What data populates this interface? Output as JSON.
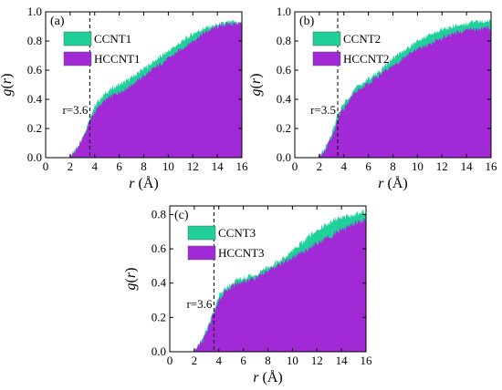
{
  "chart_data": [
    {
      "type": "area",
      "panel_label": "(a)",
      "xlabel": "r (Å)",
      "ylabel": "g(r)",
      "xlim": [
        0,
        16
      ],
      "ylim": [
        0,
        1.0
      ],
      "xticks": [
        0,
        2,
        4,
        6,
        8,
        10,
        12,
        14,
        16
      ],
      "yticks": [
        0.0,
        0.2,
        0.4,
        0.6,
        0.8,
        1.0
      ],
      "legend_position": "top-left",
      "annotation": {
        "text": "r=3.6",
        "x": 3.6
      },
      "series": [
        {
          "name": "CCNT1",
          "color": "#20d09a",
          "x": [
            0,
            1.9,
            2.3,
            2.7,
            3.0,
            3.3,
            3.6,
            4.0,
            4.5,
            5.0,
            5.5,
            6.0,
            6.5,
            7.0,
            7.5,
            8.0,
            8.5,
            9.0,
            9.5,
            10.0,
            10.5,
            11.0,
            11.5,
            12.0,
            12.5,
            13.0,
            13.5,
            14.0,
            14.5,
            15.0,
            15.5,
            16.0
          ],
          "y": [
            0,
            0,
            0.04,
            0.09,
            0.14,
            0.2,
            0.28,
            0.35,
            0.41,
            0.45,
            0.48,
            0.5,
            0.52,
            0.55,
            0.58,
            0.61,
            0.64,
            0.67,
            0.7,
            0.73,
            0.76,
            0.79,
            0.82,
            0.85,
            0.87,
            0.89,
            0.9,
            0.91,
            0.92,
            0.93,
            0.93,
            0.92
          ]
        },
        {
          "name": "HCCNT1",
          "color": "#a22ad6",
          "x": [
            0,
            1.9,
            2.3,
            2.7,
            3.0,
            3.3,
            3.6,
            4.0,
            4.5,
            5.0,
            5.5,
            6.0,
            6.5,
            7.0,
            7.5,
            8.0,
            8.5,
            9.0,
            9.5,
            10.0,
            10.5,
            11.0,
            11.5,
            12.0,
            12.5,
            13.0,
            13.5,
            14.0,
            14.5,
            15.0,
            15.5,
            16.0
          ],
          "y": [
            0,
            0,
            0.03,
            0.08,
            0.13,
            0.18,
            0.25,
            0.31,
            0.37,
            0.4,
            0.43,
            0.45,
            0.47,
            0.5,
            0.53,
            0.56,
            0.59,
            0.62,
            0.65,
            0.68,
            0.71,
            0.74,
            0.77,
            0.8,
            0.83,
            0.86,
            0.88,
            0.9,
            0.91,
            0.92,
            0.92,
            0.92
          ]
        }
      ]
    },
    {
      "type": "area",
      "panel_label": "(b)",
      "xlabel": "r (Å)",
      "ylabel": "g(r)",
      "xlim": [
        0,
        16
      ],
      "ylim": [
        0,
        1.0
      ],
      "xticks": [
        0,
        2,
        4,
        6,
        8,
        10,
        12,
        14,
        16
      ],
      "yticks": [
        0.0,
        0.2,
        0.4,
        0.6,
        0.8,
        1.0
      ],
      "legend_position": "top-left",
      "annotation": {
        "text": "r=3.5",
        "x": 3.5
      },
      "series": [
        {
          "name": "CCNT2",
          "color": "#20d09a",
          "x": [
            0,
            1.9,
            2.3,
            2.7,
            3.0,
            3.3,
            3.5,
            4.0,
            4.5,
            5.0,
            5.5,
            6.0,
            6.5,
            7.0,
            7.5,
            8.0,
            8.5,
            9.0,
            9.5,
            10.0,
            10.5,
            11.0,
            11.5,
            12.0,
            12.5,
            13.0,
            13.5,
            14.0,
            14.5,
            15.0,
            15.5,
            16.0
          ],
          "y": [
            0,
            0,
            0.04,
            0.1,
            0.16,
            0.23,
            0.3,
            0.37,
            0.43,
            0.48,
            0.51,
            0.54,
            0.57,
            0.6,
            0.64,
            0.68,
            0.71,
            0.74,
            0.77,
            0.8,
            0.82,
            0.84,
            0.86,
            0.88,
            0.89,
            0.9,
            0.91,
            0.92,
            0.93,
            0.93,
            0.94,
            0.94
          ]
        },
        {
          "name": "HCCNT2",
          "color": "#a22ad6",
          "x": [
            0,
            1.9,
            2.3,
            2.7,
            3.0,
            3.3,
            3.5,
            4.0,
            4.5,
            5.0,
            5.5,
            6.0,
            6.5,
            7.0,
            7.5,
            8.0,
            8.5,
            9.0,
            9.5,
            10.0,
            10.5,
            11.0,
            11.5,
            12.0,
            12.5,
            13.0,
            13.5,
            14.0,
            14.5,
            15.0,
            15.5,
            16.0
          ],
          "y": [
            0,
            0,
            0.03,
            0.09,
            0.14,
            0.2,
            0.27,
            0.34,
            0.4,
            0.45,
            0.48,
            0.51,
            0.54,
            0.57,
            0.6,
            0.63,
            0.66,
            0.69,
            0.72,
            0.74,
            0.76,
            0.78,
            0.8,
            0.82,
            0.84,
            0.85,
            0.86,
            0.87,
            0.88,
            0.88,
            0.89,
            0.89
          ]
        }
      ]
    },
    {
      "type": "area",
      "panel_label": "(c)",
      "xlabel": "r (Å)",
      "ylabel": "g(r)",
      "xlim": [
        0,
        16
      ],
      "ylim": [
        0,
        0.85
      ],
      "xticks": [
        0,
        2,
        4,
        6,
        8,
        10,
        12,
        14,
        16
      ],
      "yticks": [
        0.0,
        0.2,
        0.4,
        0.6,
        0.8
      ],
      "legend_position": "top-left",
      "annotation": {
        "text": "r=3.6",
        "x": 3.6
      },
      "series": [
        {
          "name": "CCNT3",
          "color": "#20d09a",
          "x": [
            0,
            1.9,
            2.3,
            2.7,
            3.0,
            3.3,
            3.6,
            4.0,
            4.5,
            5.0,
            5.5,
            6.0,
            6.5,
            7.0,
            7.5,
            8.0,
            8.5,
            9.0,
            9.5,
            10.0,
            10.5,
            11.0,
            11.5,
            12.0,
            12.5,
            13.0,
            13.5,
            14.0,
            14.5,
            15.0,
            15.5,
            16.0
          ],
          "y": [
            0,
            0,
            0.03,
            0.08,
            0.13,
            0.18,
            0.25,
            0.32,
            0.37,
            0.4,
            0.42,
            0.43,
            0.44,
            0.45,
            0.47,
            0.49,
            0.51,
            0.53,
            0.56,
            0.59,
            0.62,
            0.65,
            0.68,
            0.71,
            0.73,
            0.75,
            0.77,
            0.78,
            0.79,
            0.8,
            0.81,
            0.82
          ]
        },
        {
          "name": "HCCNT3",
          "color": "#a22ad6",
          "x": [
            0,
            1.9,
            2.3,
            2.7,
            3.0,
            3.3,
            3.6,
            4.0,
            4.5,
            5.0,
            5.5,
            6.0,
            6.5,
            7.0,
            7.5,
            8.0,
            8.5,
            9.0,
            9.5,
            10.0,
            10.5,
            11.0,
            11.5,
            12.0,
            12.5,
            13.0,
            13.5,
            14.0,
            14.5,
            15.0,
            15.5,
            16.0
          ],
          "y": [
            0,
            0,
            0.03,
            0.07,
            0.12,
            0.17,
            0.23,
            0.3,
            0.35,
            0.38,
            0.4,
            0.41,
            0.42,
            0.43,
            0.45,
            0.47,
            0.49,
            0.51,
            0.53,
            0.55,
            0.57,
            0.59,
            0.61,
            0.63,
            0.65,
            0.67,
            0.69,
            0.71,
            0.73,
            0.75,
            0.76,
            0.77
          ]
        }
      ]
    }
  ]
}
